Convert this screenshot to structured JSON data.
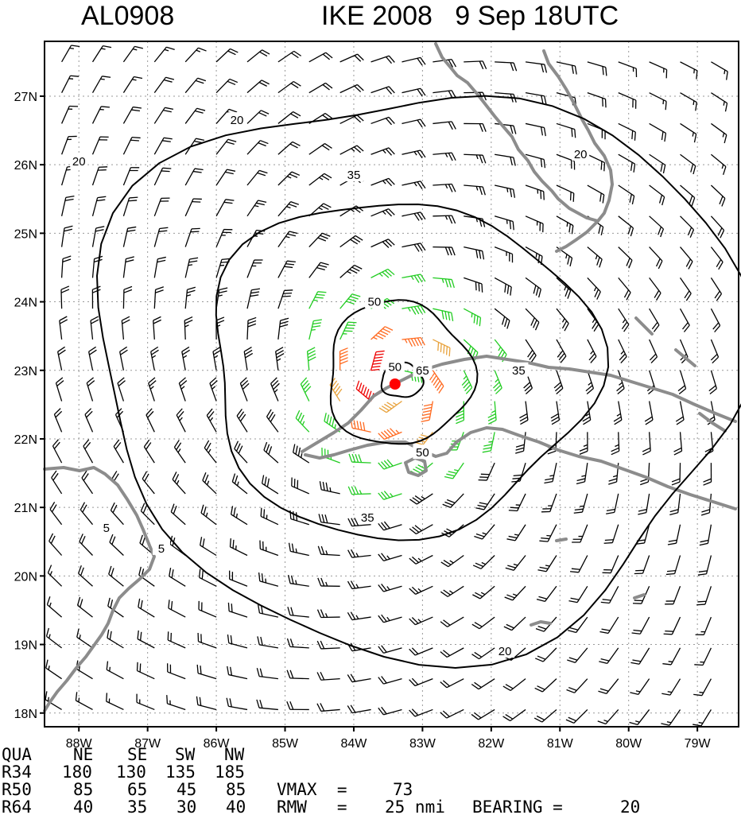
{
  "header": {
    "storm_id": "AL0908",
    "storm_title": "IKE 2008   9 Sep 18UTC"
  },
  "map": {
    "lon_range": [
      -88.5,
      -78.4
    ],
    "lat_range": [
      17.8,
      27.8
    ],
    "lat_ticks": [
      {
        "lat": 27,
        "label": "27N"
      },
      {
        "lat": 26,
        "label": "26N"
      },
      {
        "lat": 25,
        "label": "25N"
      },
      {
        "lat": 24,
        "label": "24N"
      },
      {
        "lat": 23,
        "label": "23N"
      },
      {
        "lat": 22,
        "label": "22N"
      },
      {
        "lat": 21,
        "label": "21N"
      },
      {
        "lat": 20,
        "label": "20N"
      },
      {
        "lat": 19,
        "label": "19N"
      },
      {
        "lat": 18,
        "label": "18N"
      }
    ],
    "lon_ticks": [
      {
        "lon": -88,
        "label": "88W"
      },
      {
        "lon": -87,
        "label": "87W"
      },
      {
        "lon": -86,
        "label": "86W"
      },
      {
        "lon": -85,
        "label": "85W"
      },
      {
        "lon": -84,
        "label": "84W"
      },
      {
        "lon": -83,
        "label": "83W"
      },
      {
        "lon": -82,
        "label": "82W"
      },
      {
        "lon": -81,
        "label": "81W"
      },
      {
        "lon": -80,
        "label": "80W"
      },
      {
        "lon": -79,
        "label": "79W"
      }
    ],
    "center": {
      "lon": -83.4,
      "lat": 22.8,
      "color": "#ff0000"
    },
    "vmax": 73,
    "rmw": 25,
    "bearing": 20,
    "contours": [
      {
        "value": 20,
        "label": "20",
        "rx": 4.7,
        "ry": 4.1,
        "dx": 0.35,
        "dy": 0.25,
        "labels": [
          {
            "lon": -81.8,
            "lat": 18.9,
            "text": "20"
          }
        ]
      },
      {
        "value": 35,
        "label": "35",
        "rx": 2.8,
        "ry": 2.45,
        "dx": 0.05,
        "dy": 0.25,
        "labels": [
          {
            "lon": -84.0,
            "lat": 25.85,
            "text": "35"
          },
          {
            "lon": -81.6,
            "lat": 23.0,
            "text": "35"
          },
          {
            "lon": -83.8,
            "lat": 20.85,
            "text": "35"
          }
        ]
      },
      {
        "value": 50,
        "label": "50",
        "rx": 1.05,
        "ry": 1.05,
        "dx": 0.05,
        "dy": 0.15,
        "labels": [
          {
            "lon": -83.7,
            "lat": 24.0,
            "text": "50"
          },
          {
            "lon": -83.4,
            "lat": 23.05,
            "text": "50"
          },
          {
            "lon": -83.0,
            "lat": 21.8,
            "text": "50"
          }
        ]
      },
      {
        "value": 65,
        "label": "65",
        "rx": 0.3,
        "ry": 0.25,
        "dx": 0.1,
        "dy": 0.05,
        "labels": [
          {
            "lon": -83.0,
            "lat": 23.0,
            "text": "65"
          }
        ]
      }
    ],
    "extra_labels": [
      {
        "lon": -85.7,
        "lat": 26.65,
        "text": "20"
      },
      {
        "lon": -88.0,
        "lat": 26.05,
        "text": "20"
      },
      {
        "lon": -80.7,
        "lat": 26.15,
        "text": "20"
      },
      {
        "lon": -87.6,
        "lat": 20.7,
        "text": "5"
      },
      {
        "lon": -86.8,
        "lat": 20.4,
        "text": "5"
      }
    ],
    "wind_colors": {
      "below34": "#000000",
      "r34": "#22cc22",
      "r50": "#e8a23c",
      "r64": "#ff6a20",
      "core": "#ee0000"
    }
  },
  "table": {
    "header": [
      "QUA",
      "NE",
      "SE",
      "SW",
      "NW"
    ],
    "rows": [
      [
        "R34",
        "180",
        "130",
        "135",
        "185"
      ],
      [
        "R50",
        "85",
        "65",
        "45",
        "85"
      ],
      [
        "R64",
        "40",
        "35",
        "30",
        "40"
      ]
    ]
  },
  "stats": {
    "vmax_label": "VMAX  =",
    "vmax_value": "73",
    "rmw_label": "RMW   =",
    "rmw_value": "25 nmi",
    "bearing_label": "BEARING =",
    "bearing_value": "20"
  }
}
